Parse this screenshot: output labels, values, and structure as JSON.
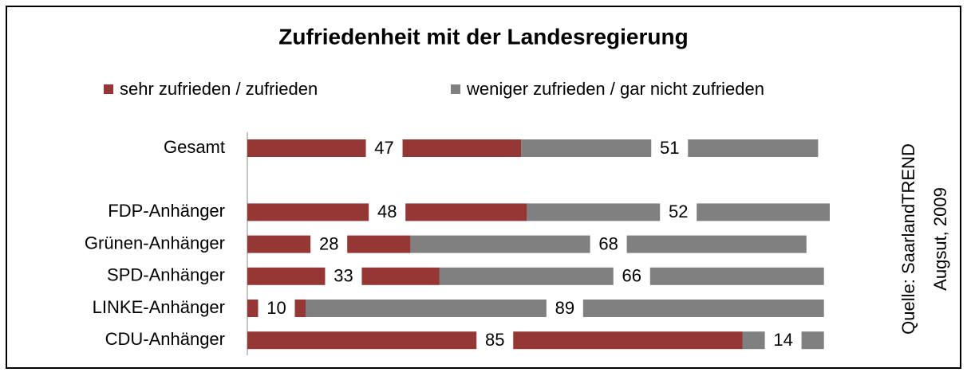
{
  "chart_data": {
    "type": "stacked-bar-horizontal",
    "title": "Zufriedenheit mit der Landesregierung",
    "categories": [
      "Gesamt",
      null,
      "FDP-Anhänger",
      "Grünen-Anhänger",
      "SPD-Anhänger",
      "LINKE-Anhänger",
      "CDU-Anhänger"
    ],
    "series": [
      {
        "name": "sehr zufrieden / zufrieden",
        "color": "#953735",
        "values": [
          47,
          null,
          48,
          28,
          33,
          10,
          85
        ]
      },
      {
        "name": "weniger zufrieden / gar nicht zufrieden",
        "color": "#808080",
        "values": [
          51,
          null,
          52,
          68,
          66,
          89,
          14
        ]
      }
    ],
    "xlim": [
      0,
      100
    ],
    "legend": "top",
    "source": [
      "Quelle: SaarlandTREND",
      "Augsut, 2009"
    ]
  }
}
